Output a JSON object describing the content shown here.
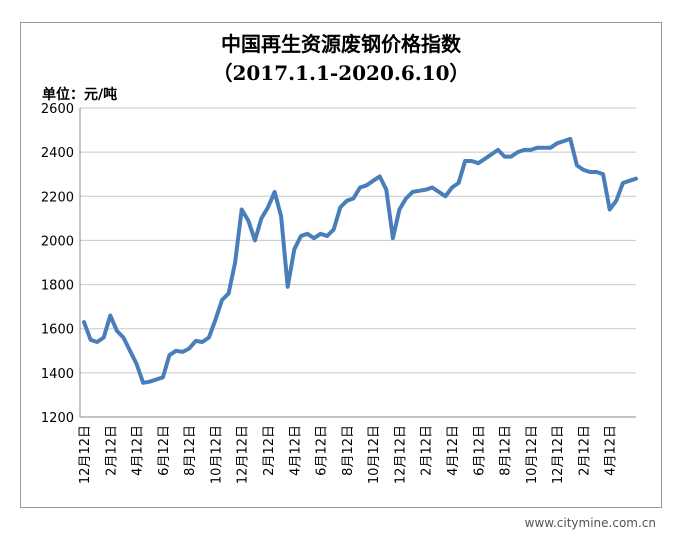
{
  "chart_data": {
    "type": "line",
    "title": "中国再生资源废钢价格指数",
    "subtitle": "（2017.1.1-2020.6.10）",
    "y_label": "单位：元/吨",
    "watermark": "www.citymine.com.cn",
    "categories": [
      "12月12日",
      null,
      null,
      null,
      "2月12日",
      null,
      null,
      null,
      "4月12日",
      null,
      null,
      null,
      "6月12日",
      null,
      null,
      null,
      "8月12日",
      null,
      null,
      null,
      "10月12日",
      null,
      null,
      null,
      "12月12日",
      null,
      null,
      null,
      "2月12日",
      null,
      null,
      null,
      "4月12日",
      null,
      null,
      null,
      "6月12日",
      null,
      null,
      null,
      "8月12日",
      null,
      null,
      null,
      "10月12日",
      null,
      null,
      null,
      "12月12日",
      null,
      null,
      null,
      "2月12日",
      null,
      null,
      null,
      "4月12日",
      null,
      null,
      null,
      "6月12日",
      null,
      null,
      null,
      "8月12日",
      null,
      null,
      null,
      "10月12日",
      null,
      null,
      null,
      "12月12日",
      null,
      null,
      null,
      "2月12日",
      null,
      null,
      null,
      "4月12日",
      null,
      null,
      null,
      null
    ],
    "values": [
      1630,
      1550,
      1540,
      1560,
      1660,
      1590,
      1560,
      1500,
      1440,
      1355,
      1360,
      1370,
      1380,
      1480,
      1500,
      1495,
      1510,
      1545,
      1540,
      1560,
      1640,
      1730,
      1760,
      1900,
      2140,
      2090,
      2000,
      2100,
      2150,
      2220,
      2110,
      1790,
      1960,
      2020,
      2030,
      2010,
      2030,
      2020,
      2050,
      2150,
      2180,
      2190,
      2240,
      2250,
      2270,
      2290,
      2230,
      2010,
      2140,
      2190,
      2220,
      2225,
      2230,
      2240,
      2220,
      2200,
      2240,
      2260,
      2360,
      2360,
      2350,
      2370,
      2390,
      2410,
      2380,
      2380,
      2400,
      2410,
      2410,
      2420,
      2420,
      2420,
      2440,
      2450,
      2460,
      2340,
      2320,
      2310,
      2310,
      2300,
      2140,
      2180,
      2260,
      2270,
      2280
    ],
    "color": "#4a7ebb",
    "ylim": [
      1200,
      2600
    ],
    "yticks": [
      1200,
      1400,
      1600,
      1800,
      2000,
      2200,
      2400,
      2600
    ],
    "grid": true
  }
}
